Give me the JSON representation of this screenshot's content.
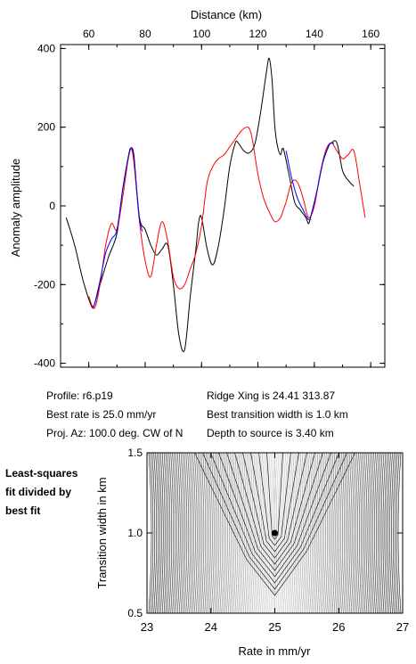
{
  "chart_data": [
    {
      "type": "line",
      "xlabel": "Distance (km)",
      "ylabel": "Anomaly amplitude",
      "xlim": [
        50,
        165
      ],
      "ylim": [
        -410,
        410
      ],
      "x_ticks": [
        60,
        80,
        100,
        120,
        140,
        160
      ],
      "y_ticks": [
        400,
        200,
        0,
        -200,
        -400
      ],
      "grid": false,
      "series": [
        {
          "color": "#000000",
          "x": [
            52,
            55,
            58,
            61,
            62,
            64,
            67,
            70,
            72,
            74,
            75,
            76,
            78,
            80,
            82,
            84,
            86,
            88,
            90,
            92,
            94,
            96,
            98,
            99,
            100,
            102,
            104,
            106,
            108,
            110,
            112,
            113,
            115,
            117,
            119,
            121,
            123,
            124,
            125,
            126,
            127,
            128,
            129,
            131,
            133,
            135,
            137,
            138,
            139,
            141,
            143,
            145,
            146,
            148,
            150,
            152,
            154
          ],
          "y": [
            -30,
            -100,
            -190,
            -255,
            -250,
            -200,
            -130,
            -70,
            40,
            120,
            145,
            120,
            -30,
            -60,
            -100,
            -125,
            -110,
            -100,
            -200,
            -330,
            -365,
            -230,
            -110,
            -40,
            -30,
            -110,
            -150,
            -100,
            -10,
            100,
            160,
            160,
            140,
            135,
            160,
            240,
            340,
            375,
            320,
            200,
            150,
            130,
            145,
            80,
            10,
            -10,
            -30,
            -45,
            -20,
            40,
            110,
            150,
            160,
            160,
            90,
            65,
            50
          ]
        },
        {
          "color": "#ff0000",
          "x": [
            60,
            62,
            64,
            66,
            68,
            70,
            72,
            74,
            75,
            76,
            78,
            80,
            82,
            84,
            86,
            88,
            90,
            92,
            94,
            96,
            98,
            100,
            102,
            104,
            106,
            108,
            110,
            112,
            114,
            116,
            117,
            118,
            120,
            122,
            124,
            126,
            128,
            129,
            130,
            132,
            134,
            136,
            138,
            140,
            142,
            144,
            146,
            148,
            150,
            152,
            154,
            156,
            158
          ],
          "y": [
            -230,
            -260,
            -200,
            -100,
            -45,
            -60,
            20,
            120,
            145,
            110,
            -40,
            -140,
            -180,
            -100,
            -40,
            -90,
            -180,
            -210,
            -200,
            -160,
            -120,
            -50,
            60,
            100,
            120,
            130,
            150,
            170,
            190,
            200,
            195,
            170,
            80,
            20,
            -15,
            -40,
            -30,
            -10,
            10,
            60,
            60,
            20,
            -30,
            0,
            80,
            140,
            160,
            140,
            120,
            130,
            140,
            60,
            -30
          ]
        },
        {
          "color": "#0000ff",
          "x": [
            61,
            62,
            64,
            66,
            68,
            70,
            72,
            74,
            75,
            76,
            77,
            78,
            79
          ],
          "y": [
            -255,
            -250,
            -190,
            -120,
            -85,
            -60,
            40,
            125,
            148,
            130,
            40,
            -35,
            -65
          ]
        },
        {
          "color": "#0000ff",
          "x": [
            130,
            132,
            134,
            136,
            138,
            139,
            141,
            143,
            145,
            146,
            147
          ],
          "y": [
            140,
            70,
            20,
            -10,
            -35,
            -20,
            40,
            110,
            152,
            160,
            158
          ]
        }
      ]
    },
    {
      "type": "contour",
      "title": "Least-squares fit divided by best fit",
      "xlabel": "Rate in mm/yr",
      "ylabel": "Transition width in km",
      "xlim": [
        23,
        27
      ],
      "ylim": [
        0.5,
        1.5
      ],
      "x_ticks": [
        23,
        24,
        25,
        26,
        27
      ],
      "y_ticks": [
        0.5,
        1.0,
        1.5
      ],
      "best_fit_point": {
        "x": 25.0,
        "y": 1.0
      },
      "grid": false
    }
  ],
  "labels": {
    "x_tick_labels": [
      "60",
      "80",
      "100",
      "120",
      "140",
      "160"
    ],
    "y_tick_labels": [
      "400",
      "200",
      "0",
      "-200",
      "-400"
    ],
    "contour_x_tick_labels": [
      "23",
      "24",
      "25",
      "26",
      "27"
    ],
    "contour_y_tick_labels": [
      "0.5",
      "1.0",
      "1.5"
    ]
  },
  "info": {
    "profile": "Profile: r6.p19",
    "best_rate": "Best rate is 25.0 mm/yr",
    "proj_az": "Proj. Az: 100.0 deg. CW of N",
    "ridge_xing": "Ridge Xing is 24.41 313.87",
    "best_width": "Best transition width is 1.0 km",
    "depth": "Depth to source is   3.40 km"
  },
  "side_label": {
    "line1": "Least-squares",
    "line2": "fit divided by",
    "line3": "best fit"
  }
}
